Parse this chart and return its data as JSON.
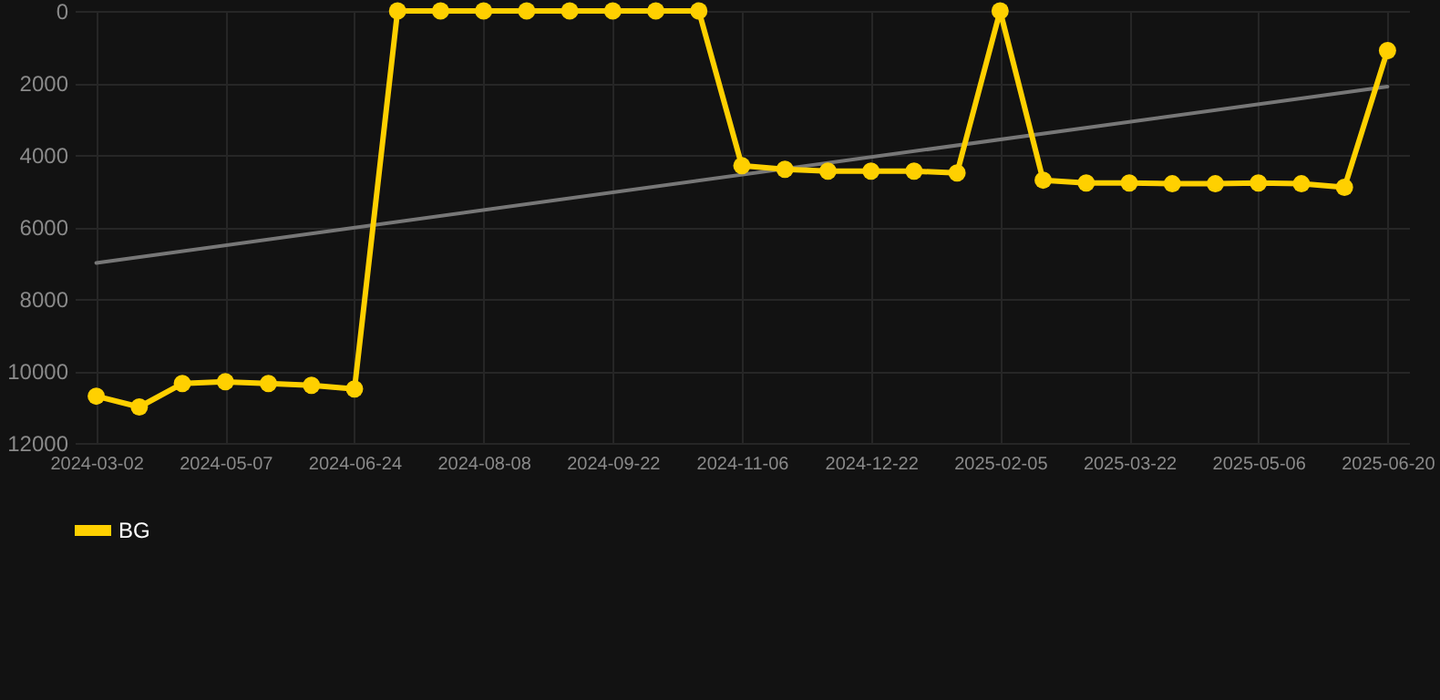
{
  "chart_data": {
    "type": "line",
    "categories": [
      "2024-03-02",
      null,
      null,
      "2024-05-07",
      null,
      null,
      "2024-06-24",
      null,
      null,
      "2024-08-08",
      null,
      null,
      "2024-09-22",
      null,
      null,
      "2024-11-06",
      null,
      null,
      "2024-12-22",
      null,
      null,
      "2025-02-05",
      null,
      null,
      "2025-03-22",
      null,
      null,
      "2025-05-06",
      null,
      null,
      "2025-06-20"
    ],
    "ylim": [
      12000,
      0
    ],
    "yticks": [
      0,
      2000,
      4000,
      6000,
      8000,
      10000,
      12000
    ],
    "grid": true,
    "legend": "bottom",
    "marker": "circle",
    "line_style": "solid",
    "series": [
      {
        "name": "BG",
        "color": "#ffd000",
        "values": [
          10700,
          11000,
          10350,
          10300,
          10350,
          10400,
          10500,
          0,
          0,
          0,
          0,
          0,
          0,
          0,
          0,
          4300,
          4400,
          4450,
          4450,
          4450,
          4500,
          0,
          4700,
          4780,
          4780,
          4800,
          4800,
          4780,
          4800,
          4900,
          1100
        ]
      },
      {
        "type": "line",
        "color": "#777777",
        "marker": "none",
        "values": [
          7000,
          null,
          null,
          null,
          null,
          null,
          null,
          null,
          null,
          null,
          null,
          null,
          null,
          null,
          null,
          null,
          null,
          null,
          null,
          null,
          null,
          null,
          null,
          null,
          null,
          null,
          null,
          null,
          null,
          null,
          2100
        ]
      }
    ]
  }
}
